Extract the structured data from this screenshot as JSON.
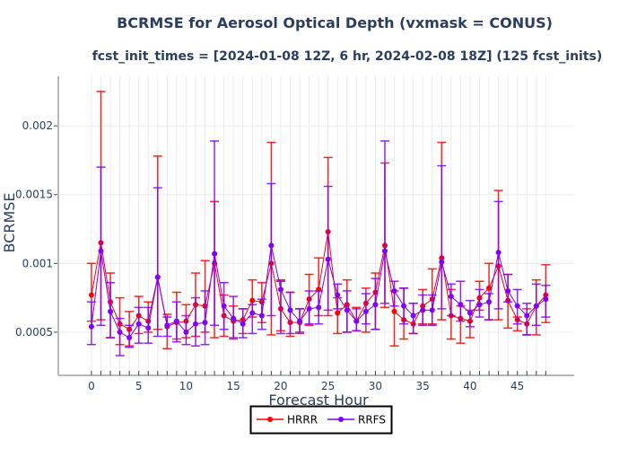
{
  "chart_data": {
    "type": "line",
    "title": "BCRMSE for Aerosol Optical Depth (vxmask = CONUS)",
    "subtitle": "fcst_init_times = [2024-01-08 12Z, 6 hr, 2024-02-08 18Z] (125 fcst_inits)",
    "xlabel": "Forecast Hour",
    "ylabel": "BCRMSE",
    "xlim": [
      -3.5,
      51.0
    ],
    "ylim": [
      0.000186,
      0.00236
    ],
    "xticks": [
      0,
      5,
      10,
      15,
      20,
      25,
      30,
      35,
      40,
      45
    ],
    "xtick_labels": [
      "0",
      "5",
      "10",
      "15",
      "20",
      "25",
      "30",
      "35",
      "40",
      "45"
    ],
    "yticks": [
      0.0005,
      0.001,
      0.0015,
      0.002
    ],
    "ytick_labels": [
      "0.0005",
      "0.001",
      "0.0015",
      "0.002"
    ],
    "grid": true,
    "legend_position": "bottom-center",
    "x": [
      0,
      1,
      2,
      3,
      4,
      5,
      6,
      7,
      8,
      9,
      10,
      11,
      12,
      13,
      14,
      15,
      16,
      17,
      18,
      19,
      20,
      21,
      22,
      23,
      24,
      25,
      26,
      27,
      28,
      29,
      30,
      31,
      32,
      33,
      34,
      35,
      36,
      37,
      38,
      39,
      40,
      41,
      42,
      43,
      44,
      45,
      46,
      47,
      48
    ],
    "series": [
      {
        "name": "HRRR",
        "color": "#ff0000",
        "values": [
          0.00077,
          0.00115,
          0.00072,
          0.00056,
          0.00052,
          0.00062,
          0.00058,
          0.0009,
          0.00054,
          0.00057,
          0.00058,
          0.0007,
          0.00069,
          0.001,
          0.00062,
          0.00058,
          0.00059,
          0.00073,
          0.00072,
          0.001,
          0.00067,
          0.00057,
          0.00057,
          0.00074,
          0.00081,
          0.00123,
          0.00064,
          0.0007,
          0.00058,
          0.00071,
          0.00079,
          0.00113,
          0.00065,
          0.00059,
          0.00056,
          0.00069,
          0.00074,
          0.00104,
          0.00062,
          0.0006,
          0.00058,
          0.00075,
          0.00082,
          0.00098,
          0.00073,
          0.00059,
          0.00056,
          0.00069,
          0.00077
        ],
        "err_upper": [
          0.001,
          0.00225,
          0.00093,
          0.00075,
          0.00065,
          0.00076,
          0.00072,
          0.00178,
          0.00063,
          0.00079,
          0.0007,
          0.00093,
          0.00102,
          0.00145,
          0.00077,
          0.00069,
          0.00067,
          0.00088,
          0.00086,
          0.00188,
          0.00088,
          0.00079,
          0.00067,
          0.00092,
          0.00104,
          0.00177,
          0.00075,
          0.00088,
          0.00068,
          0.00082,
          0.00093,
          0.00173,
          0.0008,
          0.00082,
          0.00071,
          0.00081,
          0.00096,
          0.00188,
          0.00081,
          0.00069,
          0.00066,
          0.00087,
          0.001,
          0.00153,
          0.00092,
          0.00061,
          0.00067,
          0.00088,
          0.00099
        ],
        "err_lower": [
          0.00058,
          0.00059,
          0.00046,
          0.00041,
          0.0004,
          0.00049,
          0.0005,
          0.00052,
          0.00038,
          0.00045,
          0.00046,
          0.00047,
          0.0005,
          0.00046,
          0.00047,
          0.00045,
          0.00049,
          0.00061,
          0.00057,
          0.00048,
          0.00051,
          0.00047,
          0.00049,
          0.00055,
          0.00062,
          0.00062,
          0.00049,
          0.0005,
          0.00051,
          0.0005,
          0.00052,
          0.00068,
          0.0004,
          0.00045,
          0.00049,
          0.00056,
          0.00056,
          0.00059,
          0.00045,
          0.00042,
          0.00046,
          0.00066,
          0.00059,
          0.00059,
          0.00053,
          0.00051,
          0.00048,
          0.00048,
          0.00057
        ]
      },
      {
        "name": "RRFS",
        "color": "#8000ff",
        "values": [
          0.00054,
          0.00109,
          0.00065,
          0.0005,
          0.00046,
          0.00056,
          0.00053,
          0.0009,
          0.00055,
          0.00058,
          0.0005,
          0.00056,
          0.00057,
          0.00107,
          0.00069,
          0.0006,
          0.00056,
          0.00064,
          0.00062,
          0.00113,
          0.00081,
          0.00066,
          0.00058,
          0.00067,
          0.00068,
          0.00103,
          0.00077,
          0.00066,
          0.00058,
          0.00065,
          0.0007,
          0.00109,
          0.0008,
          0.00069,
          0.00062,
          0.00066,
          0.00066,
          0.00101,
          0.00076,
          0.0007,
          0.00064,
          0.0007,
          0.00072,
          0.00108,
          0.0008,
          0.00069,
          0.00062,
          0.00069,
          0.00074
        ],
        "err_upper": [
          0.00072,
          0.0017,
          0.00086,
          0.0006,
          0.00055,
          0.00068,
          0.00068,
          0.00155,
          0.00061,
          0.00072,
          0.00062,
          0.00075,
          0.0008,
          0.00189,
          0.00086,
          0.00076,
          0.00067,
          0.0007,
          0.00074,
          0.00158,
          0.00087,
          0.00079,
          0.00067,
          0.0008,
          0.0008,
          0.00156,
          0.00085,
          0.0008,
          0.00067,
          0.00078,
          0.00089,
          0.00189,
          0.00087,
          0.00082,
          0.00071,
          0.00077,
          0.00077,
          0.00171,
          0.00085,
          0.00087,
          0.00073,
          0.00081,
          0.00078,
          0.00145,
          0.00092,
          0.00081,
          0.00071,
          0.00085,
          0.00084
        ],
        "err_lower": [
          0.00041,
          0.00055,
          0.00046,
          0.00033,
          0.00039,
          0.00042,
          0.00042,
          0.00047,
          0.00047,
          0.00043,
          0.00041,
          0.0004,
          0.00041,
          0.00055,
          0.00052,
          0.00046,
          0.00046,
          0.00049,
          0.00052,
          0.00062,
          0.00049,
          0.00049,
          0.0005,
          0.00056,
          0.00056,
          0.00066,
          0.00067,
          0.0005,
          0.00051,
          0.00056,
          0.00052,
          0.00071,
          0.00069,
          0.00056,
          0.00049,
          0.00055,
          0.00055,
          0.00067,
          0.00062,
          0.00058,
          0.00054,
          0.00061,
          0.00059,
          0.00067,
          0.00072,
          0.00056,
          0.00048,
          0.00055,
          0.00061
        ]
      }
    ]
  }
}
